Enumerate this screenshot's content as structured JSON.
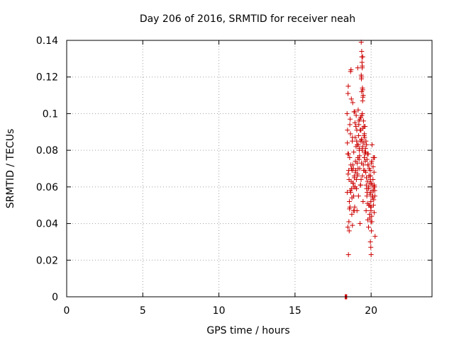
{
  "chart_data": {
    "type": "scatter",
    "title": "Day 206 of 2016, SRMTID for receiver neah",
    "xlabel": "GPS time / hours",
    "ylabel": "SRMTID / TECUs",
    "xlim": [
      0,
      24
    ],
    "ylim": [
      0,
      0.14
    ],
    "xticks": [
      "0",
      "5",
      "10",
      "15",
      "20"
    ],
    "yticks": [
      "0",
      "0.02",
      "0.04",
      "0.06",
      "0.08",
      "0.1",
      "0.12",
      "0.14"
    ],
    "grid": true,
    "marker": "+",
    "colors": {
      "points": "#cc0000",
      "grid": "#a0a0a0",
      "frame": "#000000"
    },
    "series": [
      {
        "x": [
          18.3,
          18.32,
          18.34,
          18.36,
          18.38,
          18.4,
          18.3,
          18.35,
          18.42,
          18.45,
          18.48,
          18.5,
          18.52,
          18.55,
          18.58,
          18.6,
          18.62,
          18.65,
          18.68,
          18.7,
          18.72,
          18.75,
          18.78,
          18.8,
          18.82,
          18.85,
          18.88,
          18.9,
          18.92,
          18.95,
          18.98,
          19.0,
          18.43,
          18.47,
          18.53,
          18.57,
          18.63,
          18.67,
          18.73,
          18.77,
          18.83,
          18.87,
          18.93,
          18.97,
          18.44,
          18.49,
          18.54,
          18.59,
          18.64,
          18.69,
          18.74,
          18.79,
          18.84,
          18.89,
          18.94,
          18.99,
          18.46,
          18.51,
          18.56,
          18.61,
          18.66,
          18.71,
          18.76,
          18.81,
          18.86,
          18.91,
          18.96,
          19.01,
          19.02,
          19.05,
          19.08,
          19.1,
          19.12,
          19.15,
          19.18,
          19.2,
          19.22,
          19.25,
          19.28,
          19.3,
          19.32,
          19.35,
          19.38,
          19.4,
          19.42,
          19.45,
          19.48,
          19.5,
          19.52,
          19.55,
          19.58,
          19.6,
          19.03,
          19.07,
          19.13,
          19.17,
          19.23,
          19.27,
          19.33,
          19.37,
          19.43,
          19.47,
          19.53,
          19.57,
          19.04,
          19.09,
          19.14,
          19.19,
          19.24,
          19.29,
          19.34,
          19.39,
          19.44,
          19.49,
          19.54,
          19.59,
          19.06,
          19.11,
          19.16,
          19.21,
          19.26,
          19.31,
          19.36,
          19.41,
          19.46,
          19.51,
          19.56,
          19.61,
          19.35,
          19.38,
          19.4,
          19.42,
          19.45,
          19.36,
          19.41,
          19.44,
          19.39,
          19.43,
          19.46,
          19.37,
          19.62,
          19.65,
          19.68,
          19.7,
          19.72,
          19.75,
          19.78,
          19.8,
          19.82,
          19.85,
          19.88,
          19.9,
          19.92,
          19.95,
          19.98,
          20.0,
          20.02,
          20.05,
          20.08,
          20.1,
          20.12,
          20.15,
          20.18,
          20.2,
          19.63,
          19.67,
          19.73,
          19.77,
          19.83,
          19.87,
          19.93,
          19.97,
          20.03,
          20.07,
          20.13,
          20.17,
          19.64,
          19.69,
          19.74,
          19.79,
          19.84,
          19.89,
          19.94,
          19.99,
          20.04,
          20.09,
          20.14,
          20.19,
          19.66,
          19.71,
          19.76,
          19.81,
          19.86,
          19.91,
          19.96,
          20.01,
          20.06,
          20.11,
          20.16,
          20.21,
          20.22,
          20.24,
          20.26,
          20.23,
          20.25,
          20.21,
          19.95,
          19.98,
          20.0,
          19.97,
          20.02,
          19.99
        ],
        "y": [
          0.0,
          0.0,
          0.0,
          0.0,
          0.0,
          0.0,
          0.0,
          0.0,
          0.1,
          0.091,
          0.111,
          0.115,
          0.078,
          0.064,
          0.048,
          0.094,
          0.097,
          0.123,
          0.124,
          0.108,
          0.059,
          0.069,
          0.087,
          0.072,
          0.062,
          0.055,
          0.101,
          0.065,
          0.049,
          0.087,
          0.068,
          0.093,
          0.057,
          0.038,
          0.069,
          0.052,
          0.058,
          0.072,
          0.045,
          0.039,
          0.07,
          0.06,
          0.101,
          0.074,
          0.084,
          0.067,
          0.041,
          0.076,
          0.089,
          0.063,
          0.054,
          0.106,
          0.047,
          0.066,
          0.095,
          0.069,
          0.078,
          0.023,
          0.036,
          0.049,
          0.057,
          0.07,
          0.085,
          0.062,
          0.079,
          0.047,
          0.06,
          0.082,
          0.099,
          0.085,
          0.073,
          0.066,
          0.125,
          0.102,
          0.088,
          0.096,
          0.08,
          0.07,
          0.091,
          0.061,
          0.098,
          0.121,
          0.112,
          0.085,
          0.1,
          0.131,
          0.11,
          0.096,
          0.084,
          0.076,
          0.069,
          0.093,
          0.064,
          0.047,
          0.076,
          0.055,
          0.081,
          0.04,
          0.091,
          0.073,
          0.066,
          0.052,
          0.093,
          0.087,
          0.059,
          0.083,
          0.07,
          0.094,
          0.077,
          0.085,
          0.064,
          0.099,
          0.082,
          0.072,
          0.088,
          0.079,
          0.091,
          0.067,
          0.083,
          0.075,
          0.097,
          0.061,
          0.086,
          0.08,
          0.092,
          0.069,
          0.089,
          0.078,
          0.139,
          0.134,
          0.128,
          0.126,
          0.113,
          0.119,
          0.125,
          0.107,
          0.131,
          0.114,
          0.109,
          0.12,
          0.074,
          0.068,
          0.061,
          0.083,
          0.055,
          0.078,
          0.042,
          0.072,
          0.059,
          0.05,
          0.066,
          0.045,
          0.062,
          0.057,
          0.052,
          0.049,
          0.073,
          0.041,
          0.061,
          0.055,
          0.064,
          0.05,
          0.06,
          0.046,
          0.081,
          0.047,
          0.075,
          0.063,
          0.038,
          0.07,
          0.056,
          0.066,
          0.044,
          0.058,
          0.071,
          0.053,
          0.079,
          0.065,
          0.057,
          0.072,
          0.06,
          0.05,
          0.069,
          0.047,
          0.074,
          0.054,
          0.076,
          0.068,
          0.085,
          0.059,
          0.051,
          0.078,
          0.066,
          0.043,
          0.064,
          0.062,
          0.083,
          0.055,
          0.058,
          0.061,
          0.076,
          0.058,
          0.033,
          0.06,
          0.055,
          0.076,
          0.03,
          0.027,
          0.023,
          0.049,
          0.036,
          0.041
        ]
      }
    ]
  }
}
